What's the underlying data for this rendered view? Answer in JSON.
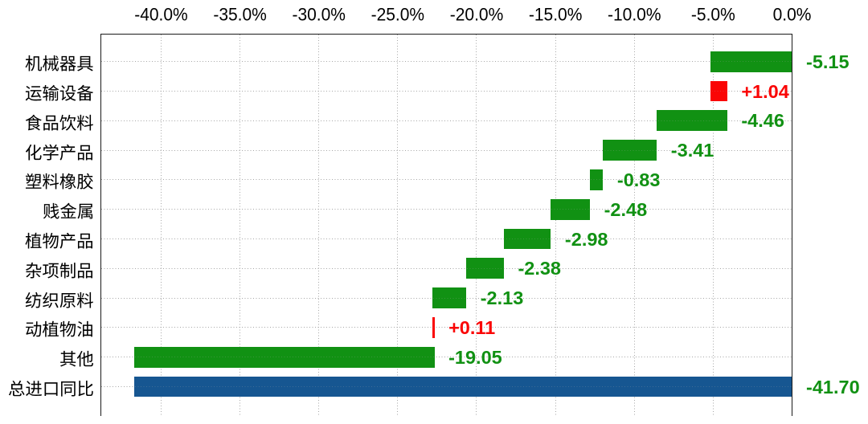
{
  "page": {
    "background": "#ffffff"
  },
  "chart_data": {
    "type": "bar",
    "subtype": "waterfall",
    "orientation": "horizontal",
    "title": "",
    "categories": [
      "机械器具",
      "运输设备",
      "食品饮料",
      "化学产品",
      "塑料橡胶",
      "贱金属",
      "植物产品",
      "杂项制品",
      "纺织原料",
      "动植物油",
      "其他",
      "总进口同比"
    ],
    "values": [
      -5.15,
      1.04,
      -4.46,
      -3.41,
      -0.83,
      -2.48,
      -2.98,
      -2.38,
      -2.13,
      0.11,
      -19.05,
      -41.7
    ],
    "value_labels": [
      "-5.15",
      "+1.04",
      "-4.46",
      "-3.41",
      "-0.83",
      "-2.48",
      "-2.98",
      "-2.38",
      "-2.13",
      "+0.11",
      "-19.05",
      "-41.70"
    ],
    "roles": [
      "delta",
      "delta",
      "delta",
      "delta",
      "delta",
      "delta",
      "delta",
      "delta",
      "delta",
      "delta",
      "delta",
      "total"
    ],
    "x_ticks": [
      -40,
      -35,
      -30,
      -25,
      -20,
      -15,
      -10,
      -5,
      0
    ],
    "x_tick_labels": [
      "-40.0%",
      "-35.0%",
      "-30.0%",
      "-25.0%",
      "-20.0%",
      "-15.0%",
      "-10.0%",
      "-5.0%",
      "0.0%"
    ],
    "xlim": [
      -43.82,
      0
    ],
    "grid": true,
    "legend": false,
    "colors": {
      "decrease_bar": "#119113",
      "increase_bar": "#fa0505",
      "total_bar": "#165691",
      "negative_label": "#119113",
      "positive_label": "#fa0505",
      "tick_label": "#000000",
      "category_label": "#000000",
      "grid": "#a6a6a6",
      "axis": "#1a1a1a"
    }
  }
}
